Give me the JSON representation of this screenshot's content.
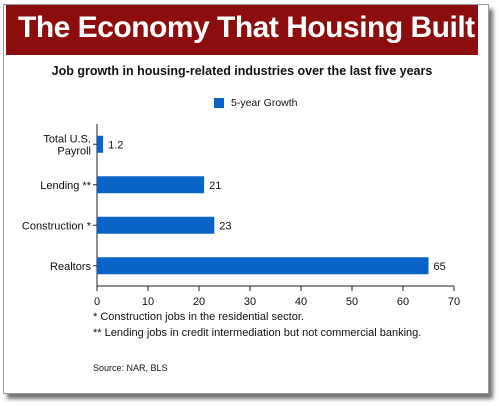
{
  "banner": {
    "title": "The Economy That Housing Built"
  },
  "chart_data": {
    "type": "bar",
    "orientation": "horizontal",
    "title": "Job growth in housing-related industries over the last five years",
    "categories": [
      [
        "Total U.S.",
        "Payroll"
      ],
      [
        "Lending **"
      ],
      [
        "Construction *"
      ],
      [
        "Realtors"
      ]
    ],
    "series": [
      {
        "name": "5-year Growth",
        "values": [
          1.2,
          21,
          23,
          65
        ]
      }
    ],
    "data_labels": [
      "1.2",
      "21",
      "23",
      "65"
    ],
    "xlim": [
      0,
      70
    ],
    "xticks": [
      "0",
      "10",
      "20",
      "30",
      "40",
      "50",
      "60",
      "70"
    ],
    "xlabel": "",
    "ylabel": "",
    "grid": false,
    "legend_position": "top-center",
    "bar_color": "#0a64c8"
  },
  "footnotes": [
    "* Construction jobs in the residential sector.",
    "** Lending jobs in credit intermediation but not commercial banking."
  ],
  "source": "Source: NAR, BLS"
}
